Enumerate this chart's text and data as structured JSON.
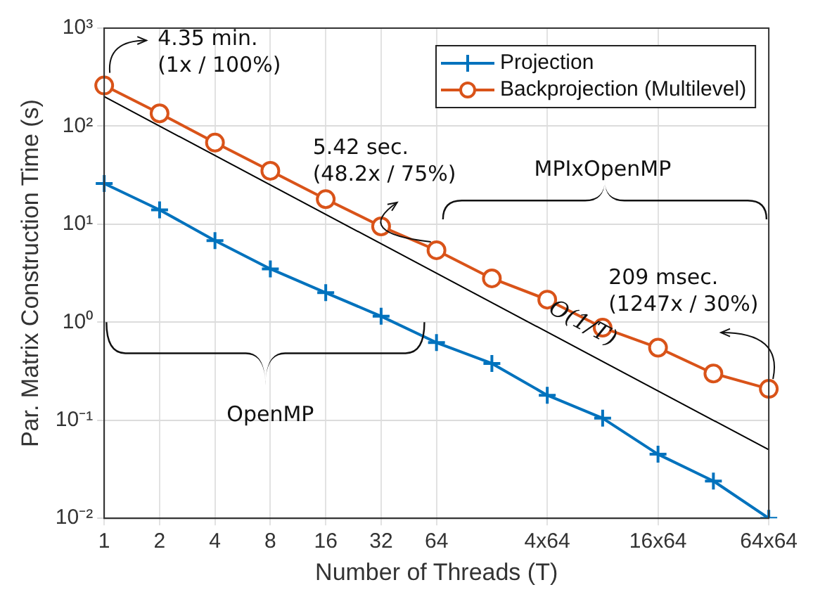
{
  "chart_data": {
    "type": "line",
    "xlabel": "Number of Threads (T)",
    "ylabel": "Par. Matrix Construction Time (s)",
    "categories": [
      "1",
      "2",
      "4",
      "8",
      "16",
      "32",
      "64",
      null,
      "4x64",
      null,
      "16x64",
      null,
      "64x64"
    ],
    "series": [
      {
        "name": "Projection",
        "color": "#0072bd",
        "marker": "cross",
        "values": [
          26,
          14,
          6.8,
          3.5,
          2.0,
          1.15,
          0.62,
          0.38,
          0.18,
          0.105,
          0.045,
          0.024,
          0.01
        ]
      },
      {
        "name": "Backprojection (Multilevel)",
        "color": "#d95319",
        "marker": "circle",
        "values": [
          260,
          135,
          68,
          35,
          18,
          9.5,
          5.42,
          2.8,
          1.7,
          0.88,
          0.55,
          0.3,
          0.209
        ]
      },
      {
        "type": "line",
        "color": "#000000",
        "marker": "none",
        "x": [
          "1",
          "64x64"
        ],
        "values": [
          200,
          0.05
        ]
      }
    ],
    "log": true,
    "ylim": [
      0.01,
      1000
    ],
    "yticks": [
      {
        "value": 0.01,
        "label": "10⁻²"
      },
      {
        "value": 0.1,
        "label": "10⁻¹"
      },
      {
        "value": 1,
        "label": "10⁰"
      },
      {
        "value": 10,
        "label": "10¹"
      },
      {
        "value": 100,
        "label": "10²"
      },
      {
        "value": 1000,
        "label": "10³"
      }
    ],
    "grid": true,
    "legend": "top right",
    "annotations": [
      {
        "text": "4.35 min.\n(1x / 100%)",
        "x": "1",
        "y": 260
      },
      {
        "text": "5.42 sec.\n(48.2x / 75%)",
        "x": "64",
        "y": 5.42
      },
      {
        "text": "209 msec.\n(1247x / 30%)",
        "x": "64x64",
        "y": 0.209
      },
      "MPIxOpenMP",
      "OpenMP",
      "O(1/T)"
    ]
  }
}
